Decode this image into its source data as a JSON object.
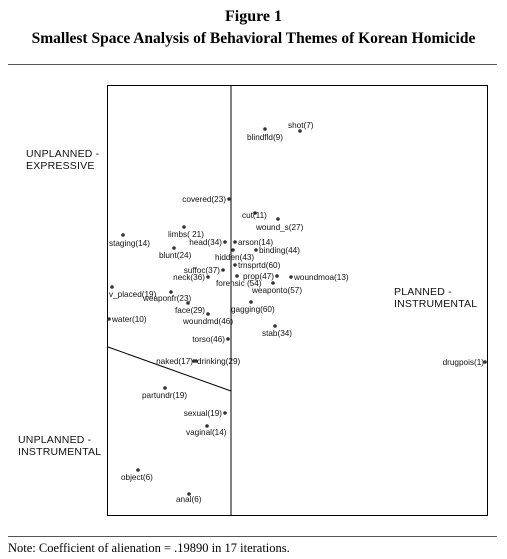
{
  "figure": {
    "number": "Figure 1",
    "title": "Smallest Space Analysis of Behavioral Themes of Korean Homicide",
    "note": "Note: Coefficient of alienation = .19890 in 17 iterations."
  },
  "regions": {
    "unplanned_expressive": [
      "UNPLANNED -",
      "EXPRESSIVE"
    ],
    "unplanned_instrumental": [
      "UNPLANNED -",
      "INSTRUMENTAL"
    ],
    "planned_instrumental": [
      "PLANNED -",
      "INSTRUMENTAL"
    ]
  },
  "chart_data": {
    "type": "scatter",
    "title": "Smallest Space Analysis of Behavioral Themes of Korean Homicide",
    "xlabel": "",
    "ylabel": "",
    "grid": false,
    "xlim": [
      0,
      380
    ],
    "ylim": [
      0,
      430
    ],
    "points": [
      {
        "label": "shot(7)",
        "x": 192,
        "y": 384
      },
      {
        "label": "blindfld(9)",
        "x": 157,
        "y": 386
      },
      {
        "label": "covered(23)",
        "x": 121,
        "y": 316
      },
      {
        "label": "cut(11)",
        "x": 147,
        "y": 302
      },
      {
        "label": "wound_s(27)",
        "x": 170,
        "y": 296
      },
      {
        "label": "limbs( 21)",
        "x": 76,
        "y": 288
      },
      {
        "label": "staging(14)",
        "x": 15,
        "y": 280
      },
      {
        "label": "head(34)",
        "x": 117,
        "y": 273
      },
      {
        "label": "arson(14)",
        "x": 127,
        "y": 273
      },
      {
        "label": "blunt(24)",
        "x": 66,
        "y": 267
      },
      {
        "label": "hidden(43)",
        "x": 125,
        "y": 265
      },
      {
        "label": "binding(44)",
        "x": 148,
        "y": 265
      },
      {
        "label": "trnsprtd(60)",
        "x": 127,
        "y": 250
      },
      {
        "label": "suffoc(37)",
        "x": 115,
        "y": 245
      },
      {
        "label": "prop(47)",
        "x": 169,
        "y": 239
      },
      {
        "label": "woundmoa(13)",
        "x": 183,
        "y": 238
      },
      {
        "label": "neck(36)",
        "x": 100,
        "y": 238
      },
      {
        "label": "forensic (54)",
        "x": 129,
        "y": 239
      },
      {
        "label": "weaponto(57)",
        "x": 165,
        "y": 232
      },
      {
        "label": "v_placed(19)",
        "x": 4,
        "y": 228
      },
      {
        "label": "weaponfr(23)",
        "x": 63,
        "y": 223
      },
      {
        "label": "face(29)",
        "x": 80,
        "y": 212
      },
      {
        "label": "gagging(60)",
        "x": 143,
        "y": 213
      },
      {
        "label": "woundmd(46)",
        "x": 100,
        "y": 201
      },
      {
        "label": "water(10)",
        "x": 1,
        "y": 196
      },
      {
        "label": "stab(34)",
        "x": 167,
        "y": 189
      },
      {
        "label": "torso(46)",
        "x": 120,
        "y": 176
      },
      {
        "label": "drugpois(1)",
        "x": 377,
        "y": 153
      },
      {
        "label": "naked(17)",
        "x": 86,
        "y": 154
      },
      {
        "label": "drinking(29)",
        "x": 88,
        "y": 154
      },
      {
        "label": "partundr(19)",
        "x": 57,
        "y": 127
      },
      {
        "label": "sexual(19)",
        "x": 117,
        "y": 102
      },
      {
        "label": "vaginal(14)",
        "x": 99,
        "y": 89
      },
      {
        "label": "object(6)",
        "x": 30,
        "y": 45
      },
      {
        "label": "anal(6)",
        "x": 81,
        "y": 21
      }
    ]
  }
}
